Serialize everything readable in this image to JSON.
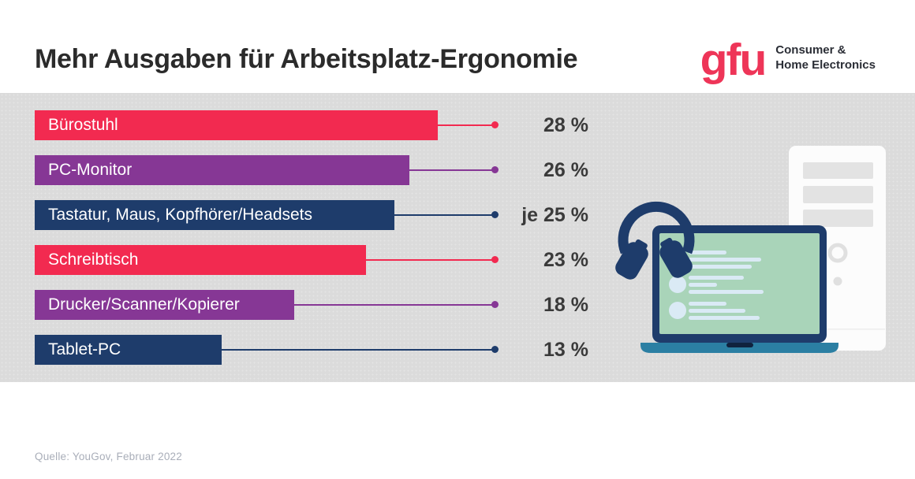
{
  "header": {
    "title": "Mehr Ausgaben für Arbeitsplatz-Ergonomie",
    "logo": {
      "wordmark": "gfu",
      "tagline_line1": "Consumer &",
      "tagline_line2": "Home Electronics",
      "wordmark_color": "#ee3558",
      "tagline_color": "#2b2e36"
    }
  },
  "chart_data": {
    "type": "bar",
    "orientation": "horizontal",
    "title": "Mehr Ausgaben für Arbeitsplatz-Ergonomie",
    "categories": [
      "Bürostuhl",
      "PC-Monitor",
      "Tastatur, Maus, Kopfhörer/Headsets",
      "Schreibtisch",
      "Drucker/Scanner/Kopierer",
      "Tablet-PC"
    ],
    "values": [
      28,
      26,
      25,
      23,
      18,
      13
    ],
    "value_labels": [
      "28 %",
      "26 %",
      "je 25 %",
      "23 %",
      "18 %",
      "13 %"
    ],
    "bar_colors": [
      "#f22a50",
      "#863795",
      "#1e3c6b",
      "#f22a50",
      "#863795",
      "#1e3c6b"
    ],
    "unit": "%",
    "xlim": [
      0,
      30
    ],
    "grid": false,
    "legend": false,
    "background_color": "#dbdbdb",
    "source": "Quelle: YouGov, Februar 2022"
  },
  "illustration": {
    "name": "workspace-illustration",
    "elements": [
      "pc-tower-icon",
      "laptop-icon",
      "headphones-icon"
    ],
    "colors": {
      "navy": "#1e3c6b",
      "teal": "#2b7fa3",
      "screen_green": "#a9d4b9",
      "screen_lines": "#daeaf5",
      "tower_white": "#fcfcfc",
      "tower_gray": "#e3e3e3"
    }
  },
  "footer": {
    "source": "Quelle: YouGov, Februar 2022"
  }
}
